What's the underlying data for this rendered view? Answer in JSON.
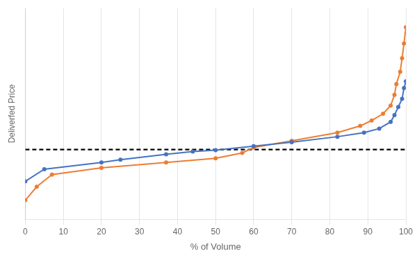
{
  "chart_data": {
    "type": "line",
    "xlabel": "% of Volume",
    "ylabel": "Deliverfed Price",
    "series": [
      {
        "x": [
          0,
          5,
          20,
          25,
          37,
          44,
          50,
          60,
          70,
          82,
          89,
          93,
          96,
          97,
          98,
          99,
          99.5,
          100
        ],
        "values": [
          0.58,
          0.67,
          0.72,
          0.74,
          0.78,
          0.8,
          0.81,
          0.84,
          0.87,
          0.91,
          0.94,
          0.97,
          1.02,
          1.07,
          1.13,
          1.19,
          1.27,
          1.32
        ],
        "color": "#4472C4",
        "marker": "circle",
        "line_style": "solid"
      },
      {
        "x": [
          0,
          3,
          7,
          20,
          37,
          50,
          57,
          60,
          70,
          82,
          88,
          91,
          94,
          96,
          97,
          97.5,
          98.5,
          99,
          99.5,
          100
        ],
        "values": [
          0.44,
          0.54,
          0.63,
          0.68,
          0.72,
          0.75,
          0.79,
          0.83,
          0.88,
          0.94,
          0.99,
          1.03,
          1.08,
          1.14,
          1.22,
          1.3,
          1.39,
          1.49,
          1.6,
          1.72
        ],
        "color": "#ED7D31",
        "marker": "circle",
        "line_style": "solid"
      }
    ],
    "hline": {
      "value": 0.815,
      "color": "#000000",
      "line_style": "dashed"
    },
    "xlim": [
      0,
      100
    ],
    "xticks": [
      0,
      10,
      20,
      30,
      40,
      50,
      60,
      70,
      80,
      90,
      100
    ],
    "ylim": [
      0.3,
      1.86
    ],
    "yticks": [],
    "grid": "x",
    "tick_labels": "x"
  }
}
